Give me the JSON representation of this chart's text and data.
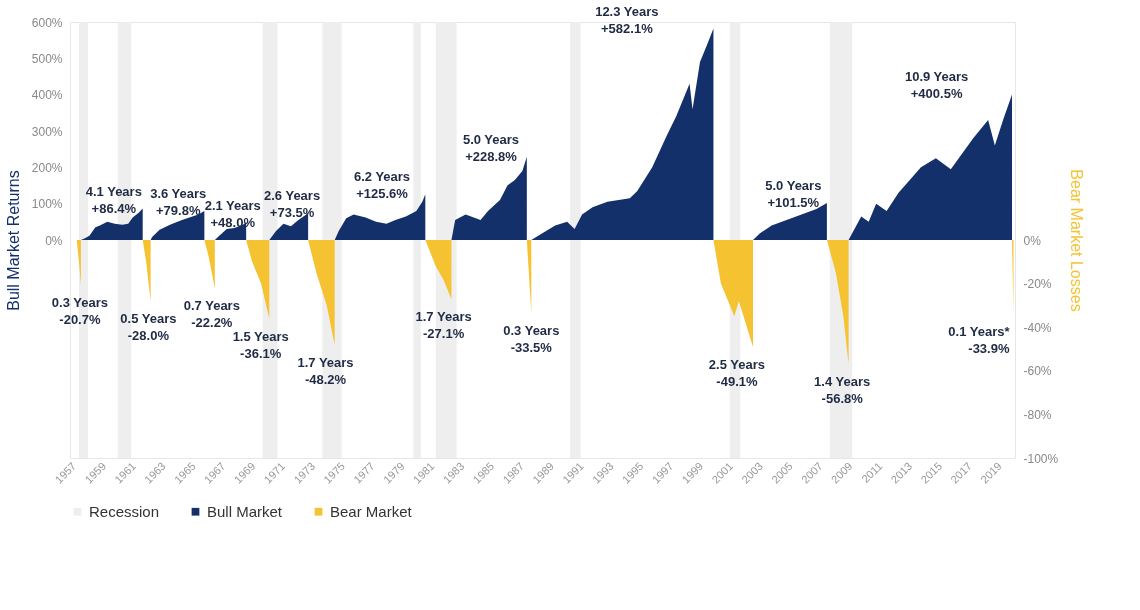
{
  "chart_data": {
    "type": "area",
    "ylabel": "Bull Market Returns",
    "y2label": "Bear Market Losses",
    "xlim": [
      1957,
      2020.3
    ],
    "xticks": [
      1957,
      1959,
      1961,
      1963,
      1965,
      1967,
      1969,
      1971,
      1973,
      1975,
      1977,
      1979,
      1981,
      1983,
      1985,
      1987,
      1989,
      1991,
      1993,
      1995,
      1997,
      1999,
      2001,
      2003,
      2005,
      2007,
      2009,
      2011,
      2013,
      2015,
      2017,
      2019
    ],
    "ylim": [
      -600,
      600
    ],
    "yticks": [
      {
        "value": 0,
        "label": "0%"
      },
      {
        "value": 100,
        "label": "100%"
      },
      {
        "value": 200,
        "label": "200%"
      },
      {
        "value": 300,
        "label": "300%"
      },
      {
        "value": 400,
        "label": "400%"
      },
      {
        "value": 500,
        "label": "500%"
      },
      {
        "value": 600,
        "label": "600%"
      }
    ],
    "y2lim": [
      -100,
      100
    ],
    "y2ticks": [
      {
        "value": 0,
        "label": "0%"
      },
      {
        "value": -20,
        "label": "-20%"
      },
      {
        "value": -40,
        "label": "-40%"
      },
      {
        "value": -60,
        "label": "-60%"
      },
      {
        "value": -80,
        "label": "-80%"
      },
      {
        "value": -100,
        "label": "-100%"
      }
    ],
    "grid": false,
    "legend": "bottom",
    "bands": [
      {
        "axis": "x",
        "from": 1957.6,
        "to": 1958.2,
        "label": "Recession",
        "color": "#eeeeee"
      },
      {
        "axis": "x",
        "from": 1960.2,
        "to": 1961.1,
        "color": "#eeeeee"
      },
      {
        "axis": "x",
        "from": 1969.9,
        "to": 1970.9,
        "color": "#eeeeee"
      },
      {
        "axis": "x",
        "from": 1973.9,
        "to": 1975.2,
        "color": "#eeeeee"
      },
      {
        "axis": "x",
        "from": 1980.0,
        "to": 1980.5,
        "color": "#eeeeee"
      },
      {
        "axis": "x",
        "from": 1981.5,
        "to": 1982.9,
        "color": "#eeeeee"
      },
      {
        "axis": "x",
        "from": 1990.5,
        "to": 1991.2,
        "color": "#eeeeee"
      },
      {
        "axis": "x",
        "from": 2001.2,
        "to": 2001.9,
        "color": "#eeeeee"
      },
      {
        "axis": "x",
        "from": 2007.9,
        "to": 2009.4,
        "color": "#eeeeee"
      }
    ],
    "series": [
      {
        "name": "Bull Market",
        "color": "#14306a",
        "x": [
          1957.73,
          1958.0,
          1958.3,
          1958.7,
          1959.0,
          1959.5,
          1960.0,
          1960.5,
          1960.9,
          1961.2,
          1961.6,
          1961.87,
          1961.87,
          1962.4,
          1962.5,
          1963.0,
          1963.7,
          1964.5,
          1965.2,
          1965.6,
          1966.0,
          1966.0,
          1966.7,
          1967.0,
          1967.5,
          1968.0,
          1968.5,
          1968.8,
          1968.8,
          1970.35,
          1970.8,
          1971.3,
          1971.8,
          1972.3,
          1972.95,
          1972.95,
          1974.73,
          1975.0,
          1975.5,
          1976.0,
          1976.8,
          1977.5,
          1978.2,
          1978.8,
          1979.5,
          1980.2,
          1980.6,
          1980.8,
          1980.8,
          1982.55,
          1982.8,
          1983.5,
          1984.5,
          1985.0,
          1985.8,
          1986.3,
          1986.8,
          1987.3,
          1987.6,
          1987.6,
          1987.9,
          1988.5,
          1989.5,
          1990.3,
          1990.8,
          1991.3,
          1992.0,
          1993.0,
          1994.5,
          1995.0,
          1996.0,
          1997.0,
          1997.6,
          1998.5,
          1998.7,
          1999.2,
          1999.7,
          2000.1,
          2000.1,
          2002.75,
          2003.2,
          2004.0,
          2005.0,
          2006.0,
          2007.0,
          2007.7,
          2007.7,
          2009.15,
          2010.0,
          2010.5,
          2011.0,
          2011.7,
          2012.5,
          2014.0,
          2015.0,
          2016.0,
          2017.5,
          2018.5,
          2018.95,
          2019.5,
          2020.1,
          2020.1
        ],
        "values": [
          0,
          5,
          12,
          35,
          40,
          50,
          45,
          42,
          45,
          62,
          75,
          86.4,
          0,
          0,
          8,
          28,
          42,
          55,
          65,
          70,
          79.8,
          0,
          0,
          12,
          30,
          33,
          40,
          48.0,
          0,
          0,
          25,
          45,
          38,
          55,
          73.5,
          0,
          0,
          25,
          60,
          70,
          62,
          50,
          45,
          55,
          65,
          80,
          105,
          125.6,
          0,
          0,
          55,
          70,
          55,
          80,
          110,
          150,
          165,
          190,
          228.8,
          0,
          0,
          15,
          40,
          50,
          30,
          70,
          90,
          105,
          115,
          135,
          200,
          290,
          340,
          430,
          360,
          490,
          540,
          582.1,
          0,
          0,
          18,
          40,
          55,
          70,
          85,
          101.5,
          0,
          0,
          65,
          50,
          100,
          80,
          130,
          200,
          225,
          195,
          280,
          330,
          260,
          330,
          400.5,
          0
        ]
      },
      {
        "name": "Bear Market",
        "color": "#f5c231",
        "axis": "y2",
        "x": [
          1957.45,
          1957.6,
          1957.73,
          1957.73,
          1961.87,
          1962.1,
          1962.4,
          1962.4,
          1966.0,
          1966.3,
          1966.7,
          1966.7,
          1968.8,
          1969.2,
          1969.8,
          1970.35,
          1970.35,
          1972.95,
          1973.5,
          1974.2,
          1974.73,
          1974.73,
          1980.8,
          1981.5,
          1982.0,
          1982.55,
          1982.55,
          1987.6,
          1987.9,
          1987.9,
          2000.1,
          2000.6,
          2001.5,
          2001.8,
          2002.75,
          2002.75,
          2007.7,
          2008.3,
          2008.8,
          2009.15,
          2009.15,
          2020.1,
          2020.2,
          2020.2
        ],
        "values": [
          0,
          -10,
          -20.7,
          0,
          0,
          -10,
          -28.0,
          0,
          0,
          -8,
          -22.2,
          0,
          0,
          -10,
          -20,
          -36.1,
          0,
          0,
          -15,
          -30,
          -48.2,
          0,
          0,
          -12,
          -18,
          -27.1,
          0,
          0,
          -33.5,
          0,
          0,
          -20,
          -35,
          -28,
          -49.1,
          0,
          0,
          -15,
          -35,
          -56.8,
          0,
          0,
          -33.9,
          0
        ]
      }
    ],
    "annotations": [
      "4.1 Years\n+86.4%",
      "3.6 Years\n+79.8%",
      "2.1 Years\n+48.0%",
      "2.6 Years\n+73.5%",
      "6.2 Years\n+125.6%",
      "5.0 Years\n+228.8%",
      "12.3 Years\n+582.1%",
      "5.0 Years\n+101.5%",
      "10.9 Years\n+400.5%",
      "0.3 Years\n-20.7%",
      "0.5 Years\n-28.0%",
      "0.7 Years\n-22.2%",
      "1.5 Years\n-36.1%",
      "1.7 Years\n-48.2%",
      "1.7 Years\n-27.1%",
      "0.3 Years\n-33.5%",
      "2.5 Years\n-49.1%",
      "1.4 Years\n-56.8%",
      "0.1 Years*\n-33.9%"
    ]
  }
}
